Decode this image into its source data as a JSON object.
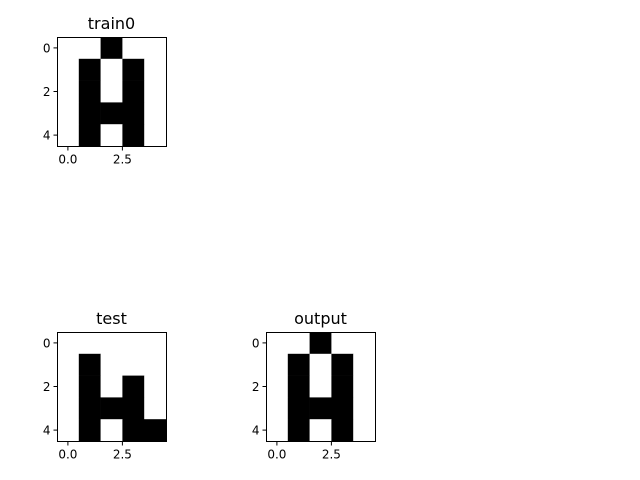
{
  "chart_data": [
    {
      "type": "heatmap",
      "title": "train0",
      "colormap": {
        "0": "#ffffff",
        "1": "#000000"
      },
      "grid": [
        [
          0,
          0,
          1,
          0,
          0
        ],
        [
          0,
          1,
          0,
          1,
          0
        ],
        [
          0,
          1,
          0,
          1,
          0
        ],
        [
          0,
          1,
          1,
          1,
          0
        ],
        [
          0,
          1,
          0,
          1,
          0
        ]
      ],
      "xlim": [
        -0.5,
        4.5
      ],
      "ylim": [
        4.5,
        -0.5
      ],
      "xticks": [
        0.0,
        2.5
      ],
      "xtick_labels": [
        "0.0",
        "2.5"
      ],
      "yticks": [
        0,
        2,
        4
      ],
      "ytick_labels": [
        "0",
        "2",
        "4"
      ]
    },
    {
      "type": "heatmap",
      "title": "test",
      "colormap": {
        "0": "#ffffff",
        "1": "#000000"
      },
      "grid": [
        [
          0,
          0,
          0,
          0,
          0
        ],
        [
          0,
          1,
          0,
          0,
          0
        ],
        [
          0,
          1,
          0,
          1,
          0
        ],
        [
          0,
          1,
          1,
          1,
          0
        ],
        [
          0,
          1,
          0,
          1,
          1
        ]
      ],
      "xlim": [
        -0.5,
        4.5
      ],
      "ylim": [
        4.5,
        -0.5
      ],
      "xticks": [
        0.0,
        2.5
      ],
      "xtick_labels": [
        "0.0",
        "2.5"
      ],
      "yticks": [
        0,
        2,
        4
      ],
      "ytick_labels": [
        "0",
        "2",
        "4"
      ]
    },
    {
      "type": "heatmap",
      "title": "output",
      "colormap": {
        "0": "#ffffff",
        "1": "#000000"
      },
      "grid": [
        [
          0,
          0,
          1,
          0,
          0
        ],
        [
          0,
          1,
          0,
          1,
          0
        ],
        [
          0,
          1,
          0,
          1,
          0
        ],
        [
          0,
          1,
          1,
          1,
          0
        ],
        [
          0,
          1,
          0,
          1,
          0
        ]
      ],
      "xlim": [
        -0.5,
        4.5
      ],
      "ylim": [
        4.5,
        -0.5
      ],
      "xticks": [
        0.0,
        2.5
      ],
      "xtick_labels": [
        "0.0",
        "2.5"
      ],
      "yticks": [
        0,
        2,
        4
      ],
      "ytick_labels": [
        "0",
        "2",
        "4"
      ]
    }
  ]
}
